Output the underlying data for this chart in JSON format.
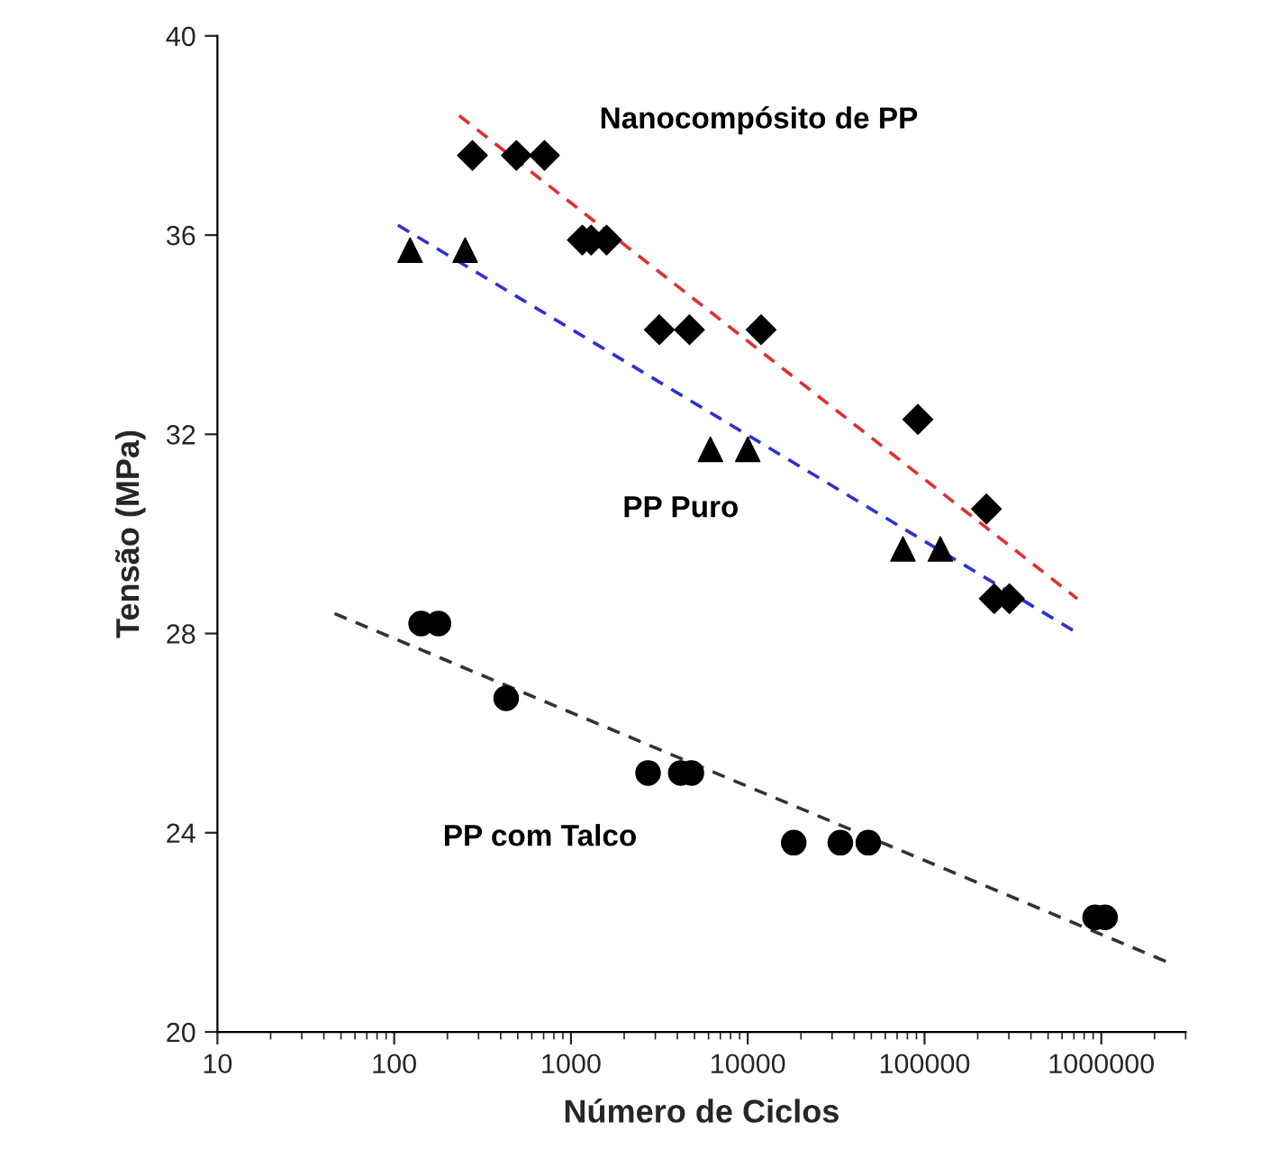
{
  "chart_data": {
    "type": "scatter",
    "xlabel": "Número de Ciclos",
    "ylabel": "Tensão (MPa)",
    "log": "x",
    "xlim": [
      10,
      3000000
    ],
    "xticks": [
      10,
      100,
      1000,
      10000,
      100000,
      1000000
    ],
    "ylim": [
      20,
      40
    ],
    "yticks": [
      20,
      24,
      28,
      32,
      36,
      40
    ],
    "grid": false,
    "legend": false,
    "series": [
      {
        "name": "Nanocompósito de PP",
        "marker": "diamond",
        "color": "#000000",
        "x": [
          277,
          491,
          708,
          1160,
          1300,
          1590,
          3160,
          4680,
          11900,
          91700,
          224000,
          248000,
          302000
        ],
        "values": [
          37.6,
          37.6,
          37.6,
          35.9,
          35.9,
          35.9,
          34.1,
          34.1,
          34.1,
          32.3,
          30.5,
          28.7,
          28.7
        ]
      },
      {
        "name": "PP Puro",
        "marker": "triangle",
        "color": "#000000",
        "x": [
          123,
          252,
          6150,
          10000,
          75500,
          123000
        ],
        "values": [
          35.7,
          35.7,
          31.7,
          31.7,
          29.7,
          29.7
        ]
      },
      {
        "name": "PP com Talco",
        "marker": "circle",
        "color": "#000000",
        "x": [
          142,
          178,
          430,
          2730,
          4180,
          4800,
          18200,
          33400,
          48100,
          923000,
          1050000
        ],
        "values": [
          28.2,
          28.2,
          26.7,
          25.2,
          25.2,
          25.2,
          23.8,
          23.8,
          23.8,
          22.3,
          22.3
        ]
      },
      {
        "type": "line",
        "marker": "none",
        "line_style": "dashed",
        "color": "#e03030",
        "x": [
          233,
          731000
        ],
        "values": [
          38.4,
          28.7
        ]
      },
      {
        "type": "line",
        "marker": "none",
        "line_style": "dashed",
        "color": "#3030d0",
        "x": [
          105,
          741000
        ],
        "values": [
          36.2,
          28.0
        ]
      },
      {
        "type": "line",
        "marker": "none",
        "line_style": "dashed",
        "color": "#333333",
        "x": [
          46,
          2380000
        ],
        "values": [
          28.4,
          21.4
        ]
      }
    ]
  }
}
